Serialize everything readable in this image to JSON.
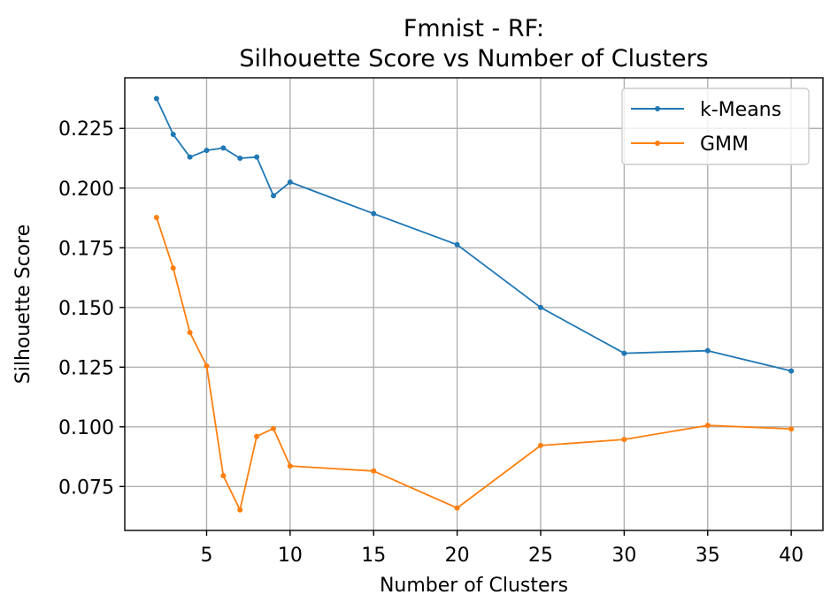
{
  "chart_data": {
    "type": "line",
    "title_lines": [
      "Fmnist - RF:",
      "Silhouette Score vs Number of Clusters"
    ],
    "xlabel": "Number of Clusters",
    "ylabel": "Silhouette Score",
    "x": [
      2,
      3,
      4,
      5,
      6,
      7,
      8,
      9,
      10,
      15,
      20,
      25,
      30,
      35,
      40
    ],
    "xlim": [
      0.1,
      41.9
    ],
    "ylim": [
      0.0566,
      0.2462
    ],
    "xticks": [
      5,
      10,
      15,
      20,
      25,
      30,
      35,
      40
    ],
    "yticks": [
      0.075,
      0.1,
      0.125,
      0.15,
      0.175,
      0.2,
      0.225
    ],
    "ytick_labels": [
      "0.075",
      "0.100",
      "0.125",
      "0.150",
      "0.175",
      "0.200",
      "0.225"
    ],
    "grid": true,
    "legend_position": "top-right",
    "series": [
      {
        "name": "k-Means",
        "color": "#1f77b4",
        "values": [
          0.2375,
          0.2225,
          0.213,
          0.2158,
          0.2168,
          0.2125,
          0.213,
          0.1968,
          0.2025,
          0.1893,
          0.1763,
          0.15,
          0.1308,
          0.1319,
          0.1234
        ]
      },
      {
        "name": "GMM",
        "color": "#ff7f0e",
        "values": [
          0.1877,
          0.1665,
          0.1395,
          0.1255,
          0.0795,
          0.0652,
          0.096,
          0.0993,
          0.0836,
          0.0815,
          0.066,
          0.0922,
          0.0947,
          0.1006,
          0.0991
        ]
      }
    ]
  }
}
